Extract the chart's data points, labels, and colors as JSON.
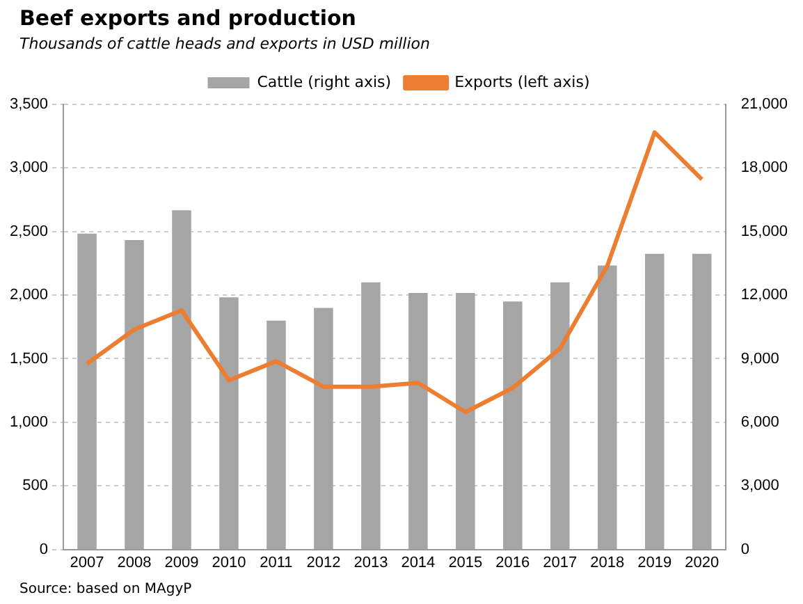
{
  "chart_data": {
    "type": "bar",
    "title": "Beef exports and production",
    "subtitle": "Thousands of cattle heads and exports in USD million",
    "categories": [
      "2007",
      "2008",
      "2009",
      "2010",
      "2011",
      "2012",
      "2013",
      "2014",
      "2015",
      "2016",
      "2017",
      "2018",
      "2019",
      "2020"
    ],
    "series": [
      {
        "name": "Cattle (right axis)",
        "axis": "y2",
        "color": "#a5a5a5",
        "values": [
          14900,
          14600,
          16000,
          11900,
          10800,
          11400,
          12600,
          12100,
          12100,
          11700,
          12600,
          13400,
          13950,
          13950
        ]
      },
      {
        "name": "Exports (left axis)",
        "type": "line",
        "color": "#ed7d31",
        "values": [
          1460,
          1730,
          1880,
          1330,
          1480,
          1280,
          1280,
          1310,
          1080,
          1270,
          1580,
          2230,
          3280,
          2910
        ]
      }
    ],
    "ylim": [
      0,
      3500
    ],
    "yticks": [
      0,
      500,
      {
        "value": 1000,
        "label": "1,000"
      },
      {
        "value": 1500,
        "label": "1,500"
      },
      {
        "value": 2000,
        "label": "2,000"
      },
      {
        "value": 2500,
        "label": "2,500"
      },
      {
        "value": 3000,
        "label": "3,000"
      },
      {
        "value": 3500,
        "label": "3,500"
      }
    ],
    "y2lim": [
      0,
      21000
    ],
    "y2ticks": [
      0,
      {
        "value": 3000,
        "label": "3,000"
      },
      {
        "value": 6000,
        "label": "6,000"
      },
      {
        "value": 9000,
        "label": "9,000"
      },
      {
        "value": 12000,
        "label": "12,000"
      },
      {
        "value": 15000,
        "label": "15,000"
      },
      {
        "value": 18000,
        "label": "18,000"
      },
      {
        "value": 21000,
        "label": "21,000"
      }
    ],
    "grid": "y",
    "legend": "top",
    "marker": "none",
    "annotations": [
      "Source: based on MAgyP"
    ]
  }
}
